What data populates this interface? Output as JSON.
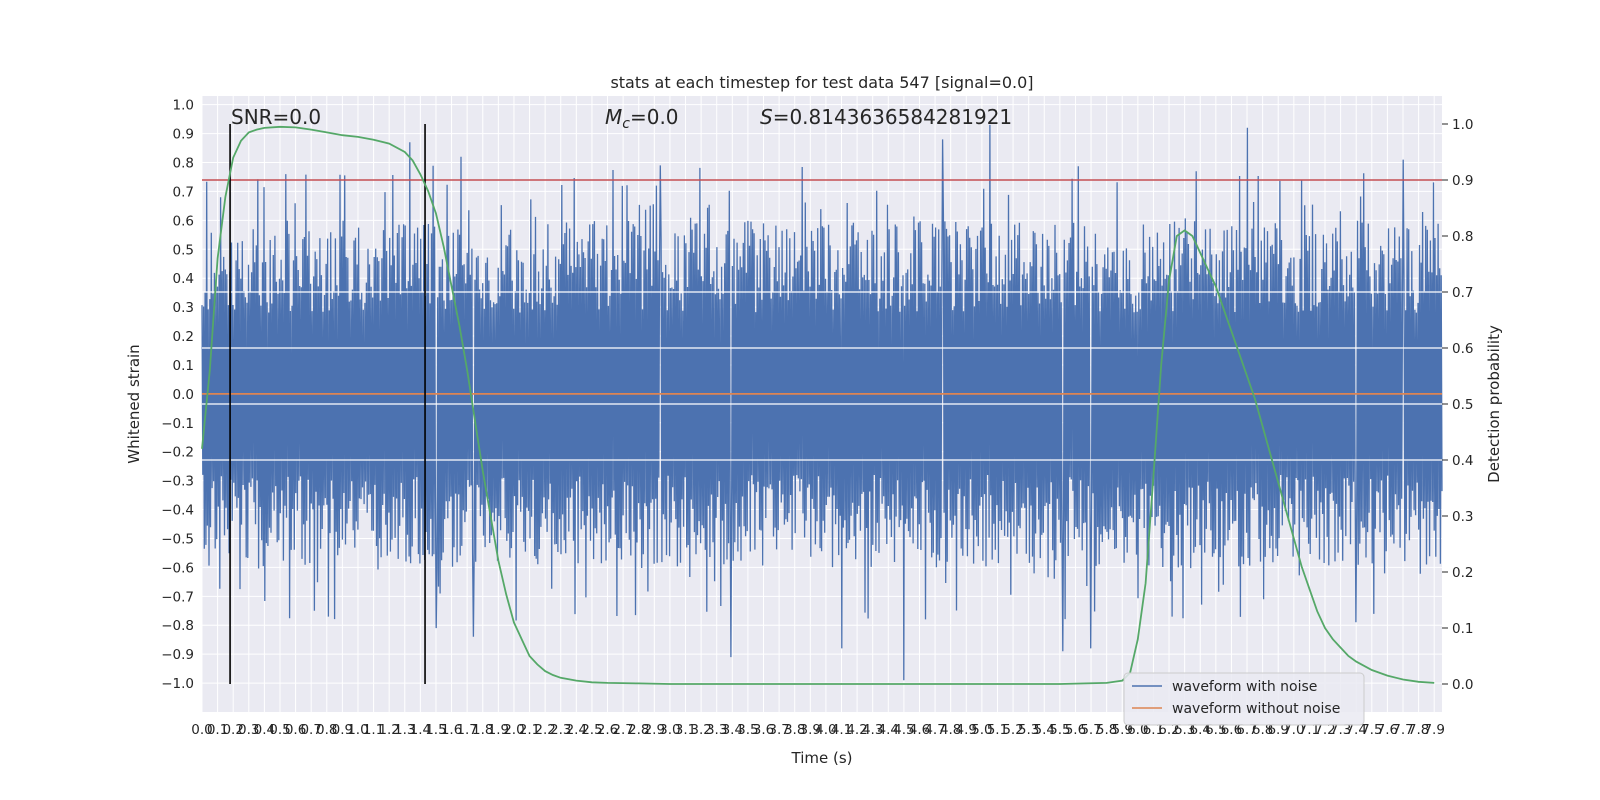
{
  "chart_data": {
    "type": "line",
    "title": "stats at each timestep for test data 547 [signal=0.0]",
    "xlabel": "Time (s)",
    "ylabel_left": "Whitened strain",
    "ylabel_right": "Detection probability",
    "xlim": [
      0.0,
      7.95
    ],
    "ylim_left": [
      -1.1,
      1.03
    ],
    "ylim_right": [
      -0.05,
      1.05
    ],
    "x_ticks": [
      "0.0",
      "0.1",
      "0.2",
      "0.3",
      "0.4",
      "0.5",
      "0.6",
      "0.7",
      "0.8",
      "0.9",
      "1.0",
      "1.1",
      "1.2",
      "1.3",
      "1.4",
      "1.5",
      "1.6",
      "1.7",
      "1.8",
      "1.9",
      "2.0",
      "2.1",
      "2.2",
      "2.3",
      "2.4",
      "2.5",
      "2.6",
      "2.7",
      "2.8",
      "2.9",
      "3.0",
      "3.1",
      "3.2",
      "3.3",
      "3.4",
      "3.5",
      "3.6",
      "3.7",
      "3.8",
      "3.9",
      "4.0",
      "4.1",
      "4.2",
      "4.3",
      "4.4",
      "4.5",
      "4.6",
      "4.7",
      "4.8",
      "4.9",
      "5.0",
      "5.1",
      "5.2",
      "5.3",
      "5.4",
      "5.5",
      "5.6",
      "5.7",
      "5.8",
      "5.9",
      "6.0",
      "6.1",
      "6.2",
      "6.3",
      "6.4",
      "6.5",
      "6.6",
      "6.7",
      "6.8",
      "6.9",
      "7.0",
      "7.1",
      "7.2",
      "7.3",
      "7.4",
      "7.5",
      "7.6",
      "7.7",
      "7.8",
      "7.9"
    ],
    "left_ticks": [
      "1.0",
      "0.9",
      "0.8",
      "0.7",
      "0.6",
      "0.5",
      "0.4",
      "0.3",
      "0.2",
      "0.1",
      "0.0",
      "−0.1",
      "−0.2",
      "−0.3",
      "−0.4",
      "−0.5",
      "−0.6",
      "−0.7",
      "−0.8",
      "−0.9",
      "−1.0"
    ],
    "right_ticks": [
      "1.0",
      "0.9",
      "0.8",
      "0.7",
      "0.6",
      "0.5",
      "0.4",
      "0.3",
      "0.2",
      "0.1",
      "0.0"
    ],
    "annotations": {
      "snr": "SNR=0.0",
      "mc_symbol": "M",
      "mc_sub": "c",
      "mc_value": "=0.0",
      "s_symbol": "S",
      "s_value": "=0.8143636584281921"
    },
    "vlines_x": [
      0.18,
      1.43
    ],
    "threshold_right": 0.9,
    "series": [
      {
        "name": "waveform with noise",
        "axis": "left",
        "color": "#4c72b0",
        "x_range": [
          0.0,
          7.95
        ],
        "n_points": 1600,
        "body_envelope": [
          -0.4,
          0.4
        ],
        "notable_peaks": [
          {
            "x": 0.12,
            "y": 0.68
          },
          {
            "x": 1.33,
            "y": 0.87
          },
          {
            "x": 1.66,
            "y": 0.82
          },
          {
            "x": 2.94,
            "y": 0.79
          },
          {
            "x": 4.75,
            "y": 0.88
          },
          {
            "x": 5.05,
            "y": 0.93
          },
          {
            "x": 6.7,
            "y": 0.92
          },
          {
            "x": 7.7,
            "y": 0.81
          },
          {
            "x": 0.72,
            "y": -0.75
          },
          {
            "x": 0.81,
            "y": -0.77
          },
          {
            "x": 1.5,
            "y": -0.81
          },
          {
            "x": 1.74,
            "y": -0.84
          },
          {
            "x": 3.39,
            "y": -0.91
          },
          {
            "x": 4.1,
            "y": -0.88
          },
          {
            "x": 4.5,
            "y": -0.99
          },
          {
            "x": 5.52,
            "y": -0.89
          },
          {
            "x": 5.7,
            "y": -0.88
          },
          {
            "x": 6.22,
            "y": -0.77
          },
          {
            "x": 7.4,
            "y": -0.79
          }
        ]
      },
      {
        "name": "waveform without noise",
        "axis": "left",
        "color": "#dd8452",
        "x": [
          0.0,
          7.95
        ],
        "y": [
          0.0,
          0.0
        ]
      },
      {
        "name": "",
        "axis": "right",
        "color": "#55a868",
        "x": [
          0.0,
          0.05,
          0.1,
          0.15,
          0.2,
          0.25,
          0.3,
          0.35,
          0.4,
          0.5,
          0.6,
          0.7,
          0.8,
          0.9,
          1.0,
          1.1,
          1.2,
          1.3,
          1.35,
          1.4,
          1.45,
          1.5,
          1.55,
          1.6,
          1.65,
          1.7,
          1.75,
          1.8,
          1.85,
          1.9,
          1.95,
          2.0,
          2.05,
          2.1,
          2.15,
          2.2,
          2.25,
          2.3,
          2.4,
          2.5,
          2.6,
          2.8,
          3.0,
          3.5,
          4.0,
          4.5,
          5.0,
          5.5,
          5.8,
          5.9,
          5.95,
          6.0,
          6.05,
          6.1,
          6.15,
          6.2,
          6.25,
          6.3,
          6.35,
          6.4,
          6.45,
          6.5,
          6.55,
          6.6,
          6.65,
          6.7,
          6.75,
          6.8,
          6.85,
          6.9,
          6.95,
          7.0,
          7.05,
          7.1,
          7.15,
          7.2,
          7.25,
          7.3,
          7.35,
          7.4,
          7.5,
          7.6,
          7.7,
          7.8,
          7.9
        ],
        "y": [
          0.42,
          0.56,
          0.76,
          0.87,
          0.94,
          0.97,
          0.985,
          0.99,
          0.993,
          0.995,
          0.994,
          0.99,
          0.985,
          0.98,
          0.977,
          0.972,
          0.965,
          0.95,
          0.935,
          0.91,
          0.88,
          0.84,
          0.78,
          0.71,
          0.64,
          0.56,
          0.47,
          0.38,
          0.3,
          0.22,
          0.16,
          0.11,
          0.08,
          0.05,
          0.035,
          0.023,
          0.016,
          0.011,
          0.006,
          0.003,
          0.002,
          0.001,
          0.0,
          0.0,
          0.0,
          0.0,
          0.0,
          0.0,
          0.002,
          0.006,
          0.02,
          0.08,
          0.18,
          0.37,
          0.57,
          0.72,
          0.8,
          0.81,
          0.8,
          0.77,
          0.74,
          0.71,
          0.67,
          0.63,
          0.59,
          0.55,
          0.51,
          0.46,
          0.41,
          0.36,
          0.31,
          0.26,
          0.21,
          0.17,
          0.13,
          0.1,
          0.08,
          0.065,
          0.05,
          0.04,
          0.025,
          0.015,
          0.008,
          0.004,
          0.002
        ]
      }
    ],
    "grid": true,
    "legend_location": "lower right"
  }
}
